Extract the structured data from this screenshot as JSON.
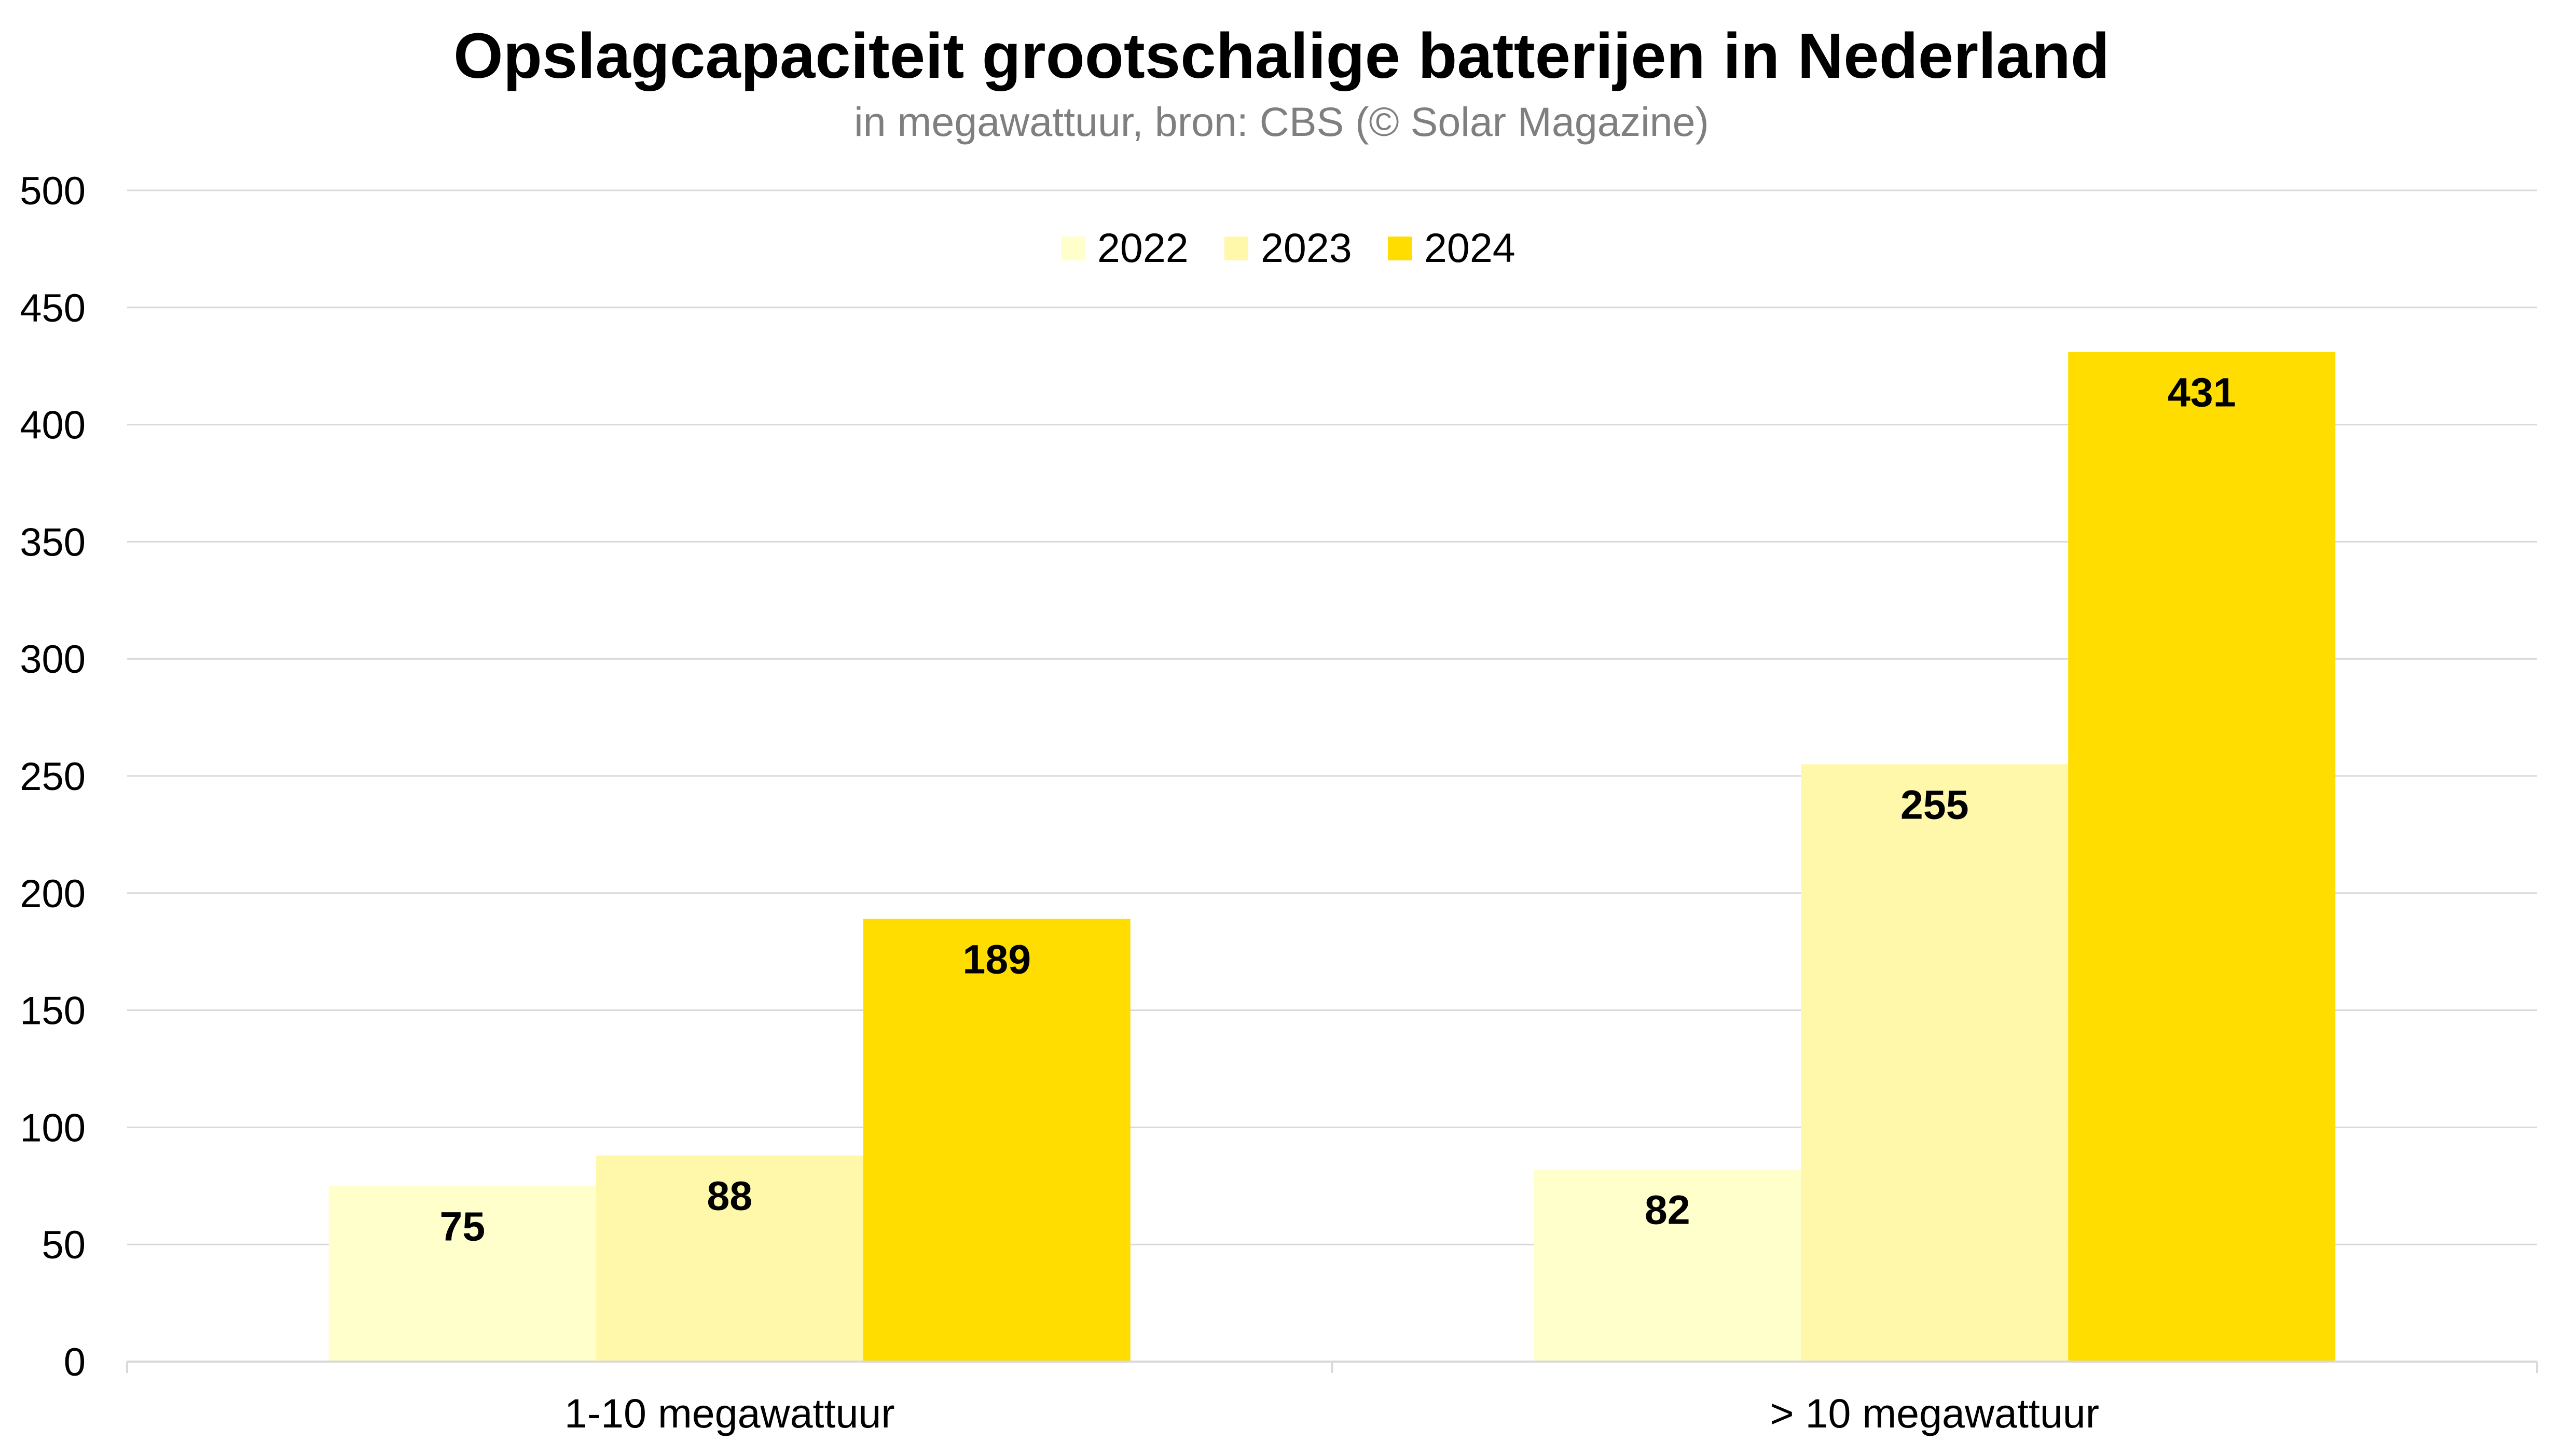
{
  "chart_data": {
    "type": "bar",
    "title": "Opslagcapaciteit grootschalige batterijen in Nederland",
    "subtitle": "in megawattuur, bron: CBS (© Solar Magazine)",
    "categories": [
      "1-10 megawattuur",
      "> 10 megawattuur"
    ],
    "series": [
      {
        "name": "2022",
        "values": [
          75,
          82
        ],
        "color": "#FFFFCC"
      },
      {
        "name": "2023",
        "values": [
          88,
          255
        ],
        "color": "#FFF8AA"
      },
      {
        "name": "2024",
        "values": [
          189,
          431
        ],
        "color": "#FFDD00"
      }
    ],
    "yticks": [
      "0",
      "50",
      "100",
      "150",
      "200",
      "250",
      "300",
      "350",
      "400",
      "450",
      "500"
    ],
    "ylim": [
      0,
      500
    ],
    "xlabel": "",
    "ylabel": "",
    "grid": true,
    "legend": "top-center"
  }
}
